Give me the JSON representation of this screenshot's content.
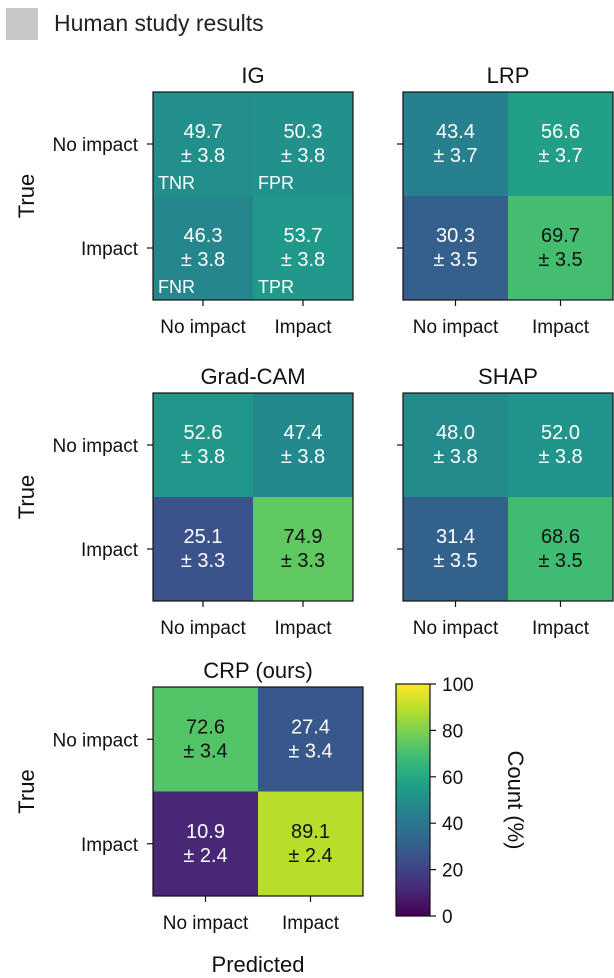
{
  "header": {
    "title": "Human study results"
  },
  "labels": {
    "true": "True",
    "predicted": "Predicted"
  },
  "chart_data": [
    {
      "type": "heatmap",
      "title": "IG",
      "xlabel": "",
      "ylabel": "True",
      "x_tick_labels": [
        "No impact",
        "Impact"
      ],
      "y_tick_labels": [
        "No impact",
        "Impact"
      ],
      "values": [
        [
          49.7,
          50.3
        ],
        [
          46.3,
          53.7
        ]
      ],
      "errors": [
        [
          3.8,
          3.8
        ],
        [
          3.8,
          3.8
        ]
      ],
      "cell_tags": [
        [
          "TNR",
          "FPR"
        ],
        [
          "FNR",
          "TPR"
        ]
      ]
    },
    {
      "type": "heatmap",
      "title": "LRP",
      "xlabel": "",
      "ylabel": "",
      "x_tick_labels": [
        "No impact",
        "Impact"
      ],
      "y_tick_labels": [
        "",
        ""
      ],
      "values": [
        [
          43.4,
          56.6
        ],
        [
          30.3,
          69.7
        ]
      ],
      "errors": [
        [
          3.7,
          3.7
        ],
        [
          3.5,
          3.5
        ]
      ]
    },
    {
      "type": "heatmap",
      "title": "Grad-CAM",
      "xlabel": "",
      "ylabel": "True",
      "x_tick_labels": [
        "No impact",
        "Impact"
      ],
      "y_tick_labels": [
        "No impact",
        "Impact"
      ],
      "values": [
        [
          52.6,
          47.4
        ],
        [
          25.1,
          74.9
        ]
      ],
      "errors": [
        [
          3.8,
          3.8
        ],
        [
          3.3,
          3.3
        ]
      ]
    },
    {
      "type": "heatmap",
      "title": "SHAP",
      "xlabel": "",
      "ylabel": "",
      "x_tick_labels": [
        "No impact",
        "Impact"
      ],
      "y_tick_labels": [
        "",
        ""
      ],
      "values": [
        [
          48.0,
          52.0
        ],
        [
          31.4,
          68.6
        ]
      ],
      "errors": [
        [
          3.8,
          3.8
        ],
        [
          3.5,
          3.5
        ]
      ]
    },
    {
      "type": "heatmap",
      "title": "CRP (ours)",
      "xlabel": "Predicted",
      "ylabel": "True",
      "x_tick_labels": [
        "No impact",
        "Impact"
      ],
      "y_tick_labels": [
        "No impact",
        "Impact"
      ],
      "values": [
        [
          72.6,
          27.4
        ],
        [
          10.9,
          89.1
        ]
      ],
      "errors": [
        [
          3.4,
          3.4
        ],
        [
          2.4,
          2.4
        ]
      ]
    }
  ],
  "colorbar": {
    "label": "Count (%)",
    "colormap": "viridis",
    "range": [
      0,
      100
    ],
    "ticks": [
      0,
      20,
      40,
      60,
      80,
      100
    ]
  }
}
